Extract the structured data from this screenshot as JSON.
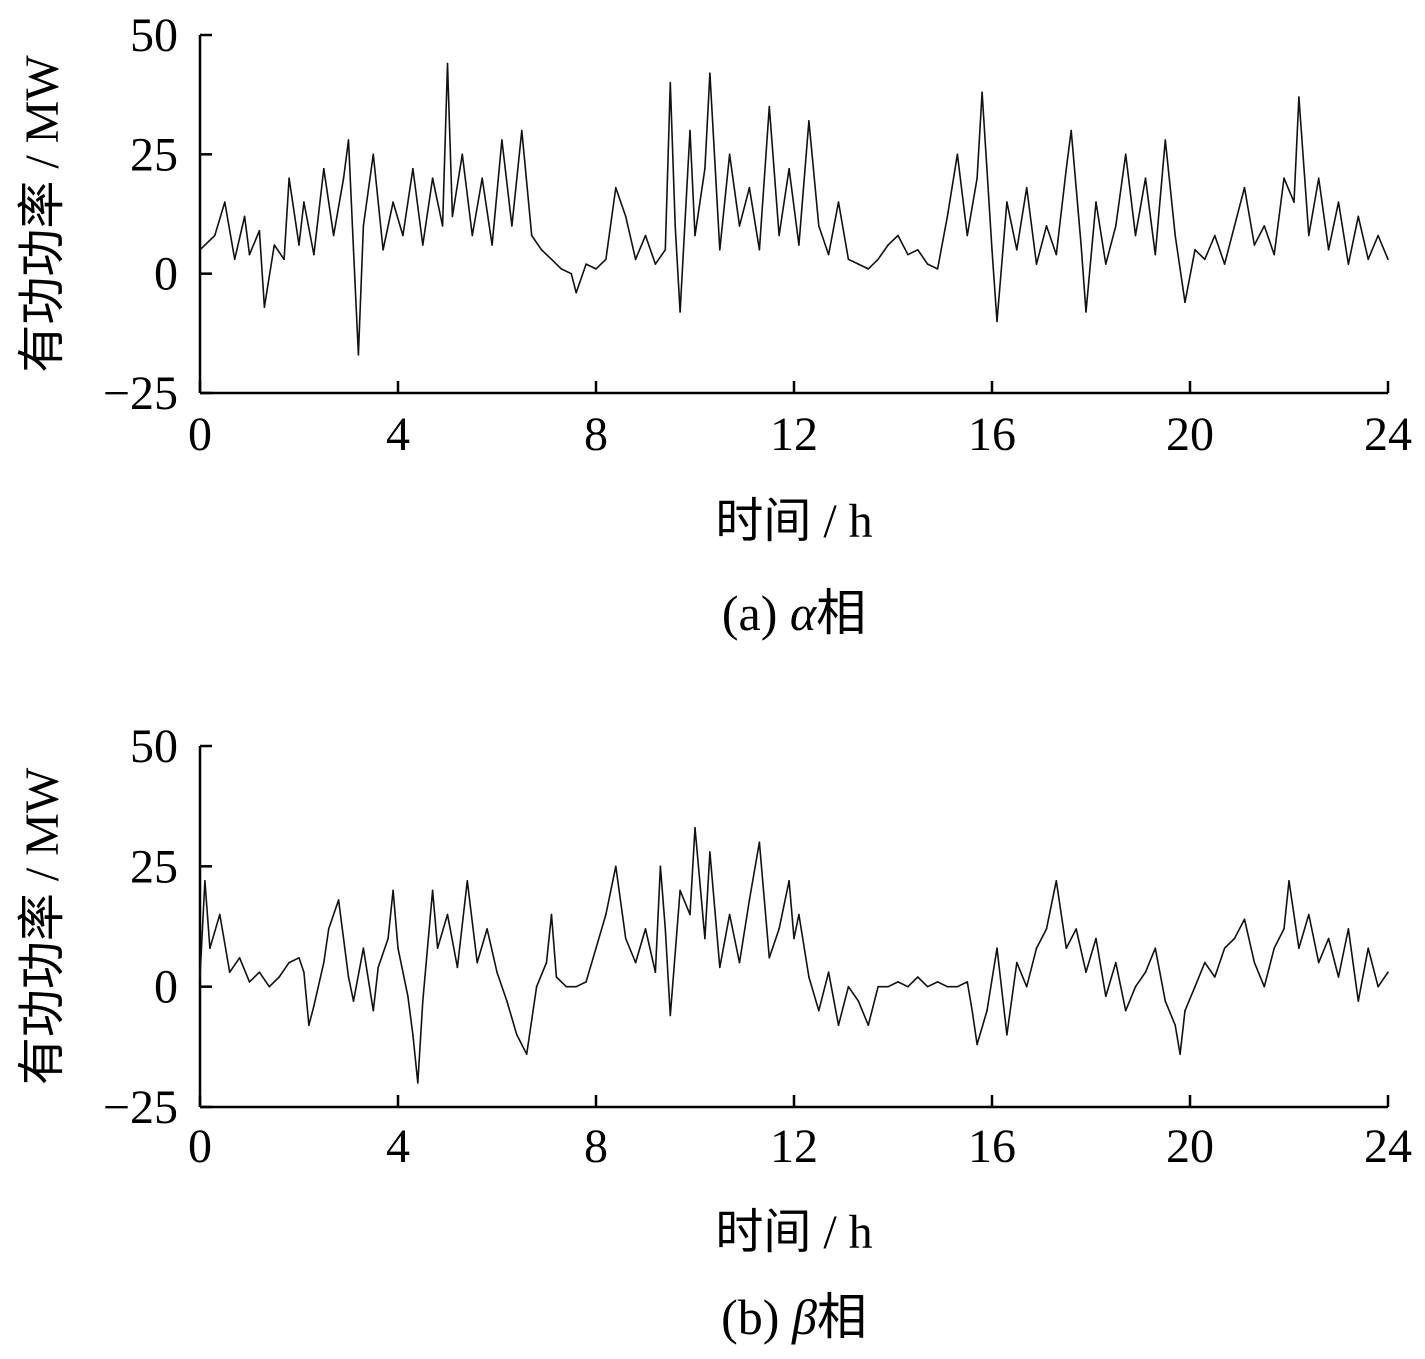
{
  "chart_data": [
    {
      "type": "line",
      "xlabel": "时间 / h",
      "ylabel": "有功功率 / MW",
      "caption_prefix": "(a)",
      "caption_symbol": "α",
      "caption_suffix": "相",
      "xlim": [
        0,
        24
      ],
      "ylim": [
        -25,
        50
      ],
      "xticks": [
        0,
        4,
        8,
        12,
        16,
        20,
        24
      ],
      "yticks": [
        -25,
        0,
        25,
        50
      ],
      "ytick_labels": [
        "−25",
        "0",
        "25",
        "50"
      ],
      "grid": false,
      "color": "#111111",
      "series": [
        {
          "values": [
            [
              0.0,
              5
            ],
            [
              0.3,
              8
            ],
            [
              0.5,
              15
            ],
            [
              0.7,
              3
            ],
            [
              0.9,
              12
            ],
            [
              1.0,
              4
            ],
            [
              1.2,
              9
            ],
            [
              1.3,
              -7
            ],
            [
              1.5,
              6
            ],
            [
              1.7,
              3
            ],
            [
              1.8,
              20
            ],
            [
              2.0,
              6
            ],
            [
              2.1,
              15
            ],
            [
              2.3,
              4
            ],
            [
              2.5,
              22
            ],
            [
              2.7,
              8
            ],
            [
              2.9,
              20
            ],
            [
              3.0,
              28
            ],
            [
              3.1,
              5
            ],
            [
              3.2,
              -17
            ],
            [
              3.3,
              10
            ],
            [
              3.5,
              25
            ],
            [
              3.7,
              5
            ],
            [
              3.9,
              15
            ],
            [
              4.1,
              8
            ],
            [
              4.3,
              22
            ],
            [
              4.5,
              6
            ],
            [
              4.7,
              20
            ],
            [
              4.9,
              10
            ],
            [
              5.0,
              44
            ],
            [
              5.1,
              12
            ],
            [
              5.3,
              25
            ],
            [
              5.5,
              8
            ],
            [
              5.7,
              20
            ],
            [
              5.9,
              6
            ],
            [
              6.1,
              28
            ],
            [
              6.3,
              10
            ],
            [
              6.5,
              30
            ],
            [
              6.7,
              8
            ],
            [
              6.9,
              5
            ],
            [
              7.1,
              3
            ],
            [
              7.3,
              1
            ],
            [
              7.5,
              0
            ],
            [
              7.6,
              -4
            ],
            [
              7.8,
              2
            ],
            [
              8.0,
              1
            ],
            [
              8.2,
              3
            ],
            [
              8.4,
              18
            ],
            [
              8.6,
              12
            ],
            [
              8.8,
              3
            ],
            [
              9.0,
              8
            ],
            [
              9.2,
              2
            ],
            [
              9.4,
              5
            ],
            [
              9.5,
              40
            ],
            [
              9.6,
              10
            ],
            [
              9.7,
              -8
            ],
            [
              9.9,
              30
            ],
            [
              10.0,
              8
            ],
            [
              10.2,
              22
            ],
            [
              10.3,
              42
            ],
            [
              10.5,
              5
            ],
            [
              10.7,
              25
            ],
            [
              10.9,
              10
            ],
            [
              11.1,
              18
            ],
            [
              11.3,
              5
            ],
            [
              11.5,
              35
            ],
            [
              11.7,
              8
            ],
            [
              11.9,
              22
            ],
            [
              12.1,
              6
            ],
            [
              12.3,
              32
            ],
            [
              12.5,
              10
            ],
            [
              12.7,
              4
            ],
            [
              12.9,
              15
            ],
            [
              13.1,
              3
            ],
            [
              13.3,
              2
            ],
            [
              13.5,
              1
            ],
            [
              13.7,
              3
            ],
            [
              13.9,
              6
            ],
            [
              14.1,
              8
            ],
            [
              14.3,
              4
            ],
            [
              14.5,
              5
            ],
            [
              14.7,
              2
            ],
            [
              14.9,
              1
            ],
            [
              15.1,
              12
            ],
            [
              15.3,
              25
            ],
            [
              15.5,
              8
            ],
            [
              15.7,
              20
            ],
            [
              15.8,
              38
            ],
            [
              16.0,
              5
            ],
            [
              16.1,
              -10
            ],
            [
              16.3,
              15
            ],
            [
              16.5,
              5
            ],
            [
              16.7,
              18
            ],
            [
              16.9,
              2
            ],
            [
              17.1,
              10
            ],
            [
              17.3,
              4
            ],
            [
              17.5,
              22
            ],
            [
              17.6,
              30
            ],
            [
              17.8,
              6
            ],
            [
              17.9,
              -8
            ],
            [
              18.1,
              15
            ],
            [
              18.3,
              2
            ],
            [
              18.5,
              10
            ],
            [
              18.7,
              25
            ],
            [
              18.9,
              8
            ],
            [
              19.1,
              20
            ],
            [
              19.3,
              4
            ],
            [
              19.5,
              28
            ],
            [
              19.7,
              8
            ],
            [
              19.9,
              -6
            ],
            [
              20.1,
              5
            ],
            [
              20.3,
              3
            ],
            [
              20.5,
              8
            ],
            [
              20.7,
              2
            ],
            [
              20.9,
              10
            ],
            [
              21.1,
              18
            ],
            [
              21.3,
              6
            ],
            [
              21.5,
              10
            ],
            [
              21.7,
              4
            ],
            [
              21.9,
              20
            ],
            [
              22.1,
              15
            ],
            [
              22.2,
              37
            ],
            [
              22.4,
              8
            ],
            [
              22.6,
              20
            ],
            [
              22.8,
              5
            ],
            [
              23.0,
              15
            ],
            [
              23.2,
              2
            ],
            [
              23.4,
              12
            ],
            [
              23.6,
              3
            ],
            [
              23.8,
              8
            ],
            [
              24.0,
              3
            ]
          ]
        }
      ]
    },
    {
      "type": "line",
      "xlabel": "时间 / h",
      "ylabel": "有功功率 / MW",
      "caption_prefix": "(b)",
      "caption_symbol": "β",
      "caption_suffix": "相",
      "xlim": [
        0,
        24
      ],
      "ylim": [
        -25,
        50
      ],
      "xticks": [
        0,
        4,
        8,
        12,
        16,
        20,
        24
      ],
      "yticks": [
        -25,
        0,
        25,
        50
      ],
      "ytick_labels": [
        "−25",
        "0",
        "25",
        "50"
      ],
      "grid": false,
      "color": "#111111",
      "series": [
        {
          "values": [
            [
              0.0,
              2
            ],
            [
              0.1,
              22
            ],
            [
              0.2,
              8
            ],
            [
              0.4,
              15
            ],
            [
              0.6,
              3
            ],
            [
              0.8,
              6
            ],
            [
              1.0,
              1
            ],
            [
              1.2,
              3
            ],
            [
              1.4,
              0
            ],
            [
              1.6,
              2
            ],
            [
              1.8,
              5
            ],
            [
              2.0,
              6
            ],
            [
              2.1,
              3
            ],
            [
              2.2,
              -8
            ],
            [
              2.3,
              -4
            ],
            [
              2.5,
              5
            ],
            [
              2.6,
              12
            ],
            [
              2.8,
              18
            ],
            [
              3.0,
              2
            ],
            [
              3.1,
              -3
            ],
            [
              3.3,
              8
            ],
            [
              3.5,
              -5
            ],
            [
              3.6,
              4
            ],
            [
              3.8,
              10
            ],
            [
              3.9,
              20
            ],
            [
              4.0,
              8
            ],
            [
              4.2,
              -2
            ],
            [
              4.3,
              -10
            ],
            [
              4.4,
              -20
            ],
            [
              4.5,
              -3
            ],
            [
              4.7,
              20
            ],
            [
              4.8,
              8
            ],
            [
              5.0,
              15
            ],
            [
              5.2,
              4
            ],
            [
              5.4,
              22
            ],
            [
              5.6,
              5
            ],
            [
              5.8,
              12
            ],
            [
              6.0,
              3
            ],
            [
              6.2,
              -3
            ],
            [
              6.4,
              -10
            ],
            [
              6.6,
              -14
            ],
            [
              6.8,
              0
            ],
            [
              7.0,
              5
            ],
            [
              7.1,
              15
            ],
            [
              7.2,
              2
            ],
            [
              7.4,
              0
            ],
            [
              7.6,
              0
            ],
            [
              7.8,
              1
            ],
            [
              8.0,
              8
            ],
            [
              8.2,
              15
            ],
            [
              8.4,
              25
            ],
            [
              8.6,
              10
            ],
            [
              8.8,
              5
            ],
            [
              9.0,
              12
            ],
            [
              9.2,
              3
            ],
            [
              9.3,
              25
            ],
            [
              9.4,
              12
            ],
            [
              9.5,
              -6
            ],
            [
              9.7,
              20
            ],
            [
              9.9,
              15
            ],
            [
              10.0,
              33
            ],
            [
              10.2,
              10
            ],
            [
              10.3,
              28
            ],
            [
              10.5,
              4
            ],
            [
              10.7,
              15
            ],
            [
              10.9,
              5
            ],
            [
              11.1,
              18
            ],
            [
              11.3,
              30
            ],
            [
              11.5,
              6
            ],
            [
              11.7,
              12
            ],
            [
              11.9,
              22
            ],
            [
              12.0,
              10
            ],
            [
              12.1,
              15
            ],
            [
              12.3,
              2
            ],
            [
              12.5,
              -5
            ],
            [
              12.7,
              3
            ],
            [
              12.9,
              -8
            ],
            [
              13.1,
              0
            ],
            [
              13.3,
              -3
            ],
            [
              13.5,
              -8
            ],
            [
              13.7,
              0
            ],
            [
              13.9,
              0
            ],
            [
              14.1,
              1
            ],
            [
              14.3,
              0
            ],
            [
              14.5,
              2
            ],
            [
              14.7,
              0
            ],
            [
              14.9,
              1
            ],
            [
              15.1,
              0
            ],
            [
              15.3,
              0
            ],
            [
              15.5,
              1
            ],
            [
              15.6,
              -5
            ],
            [
              15.7,
              -12
            ],
            [
              15.9,
              -5
            ],
            [
              16.1,
              8
            ],
            [
              16.3,
              -10
            ],
            [
              16.5,
              5
            ],
            [
              16.7,
              0
            ],
            [
              16.9,
              8
            ],
            [
              17.1,
              12
            ],
            [
              17.3,
              22
            ],
            [
              17.5,
              8
            ],
            [
              17.7,
              12
            ],
            [
              17.9,
              3
            ],
            [
              18.1,
              10
            ],
            [
              18.3,
              -2
            ],
            [
              18.5,
              5
            ],
            [
              18.7,
              -5
            ],
            [
              18.9,
              0
            ],
            [
              19.1,
              3
            ],
            [
              19.3,
              8
            ],
            [
              19.5,
              -3
            ],
            [
              19.7,
              -8
            ],
            [
              19.8,
              -14
            ],
            [
              19.9,
              -5
            ],
            [
              20.1,
              0
            ],
            [
              20.3,
              5
            ],
            [
              20.5,
              2
            ],
            [
              20.7,
              8
            ],
            [
              20.9,
              10
            ],
            [
              21.1,
              14
            ],
            [
              21.3,
              5
            ],
            [
              21.5,
              0
            ],
            [
              21.7,
              8
            ],
            [
              21.9,
              12
            ],
            [
              22.0,
              22
            ],
            [
              22.2,
              8
            ],
            [
              22.4,
              15
            ],
            [
              22.6,
              5
            ],
            [
              22.8,
              10
            ],
            [
              23.0,
              2
            ],
            [
              23.2,
              12
            ],
            [
              23.4,
              -3
            ],
            [
              23.6,
              8
            ],
            [
              23.8,
              0
            ],
            [
              24.0,
              3
            ]
          ]
        }
      ]
    }
  ]
}
